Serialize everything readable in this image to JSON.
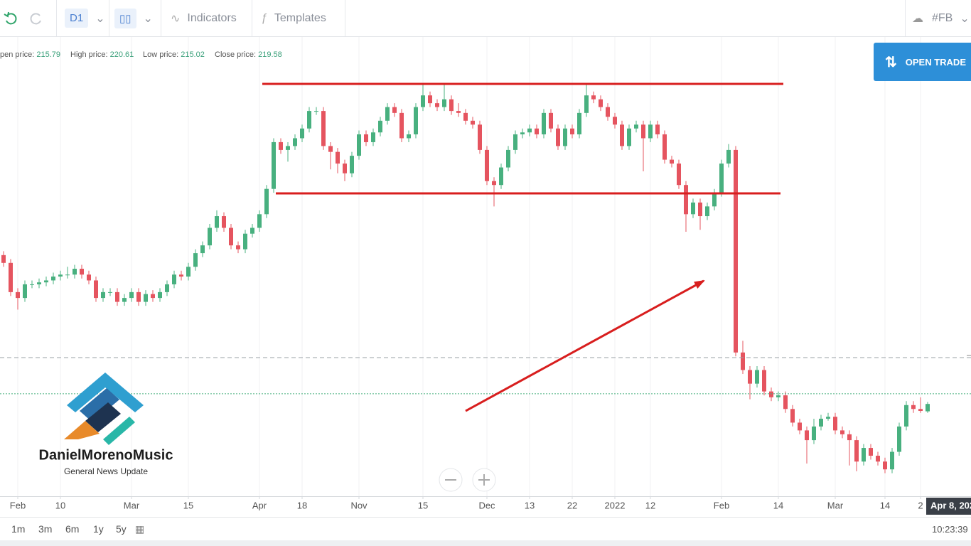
{
  "ui": {
    "timeframe": "D1",
    "indicators": "Indicators",
    "templates": "Templates",
    "symbol": "#FB",
    "open_trade": "OPEN TRADE",
    "ohlc_labels": [
      "pen price:",
      "High price:",
      "Low price:",
      "Close price:"
    ],
    "ranges": [
      "1m",
      "3m",
      "6m",
      "1y",
      "5y"
    ],
    "clock": "10:23:39",
    "crosshair_date": "Apr 8, 202",
    "logo_title": "DanielMorenoMusic",
    "logo_subtitle": "General News Update"
  },
  "chart_data": {
    "type": "candlestick",
    "up_color": "#48b07f",
    "down_color": "#e5545f",
    "grid": true,
    "xlim": [
      -0.5,
      136.1
    ],
    "ylim": [
      172.2,
      408.0
    ],
    "xticks": [
      {
        "value": 2,
        "label": "Feb"
      },
      {
        "value": 8,
        "label": "10"
      },
      {
        "value": 18,
        "label": "Mar"
      },
      {
        "value": 26,
        "label": "15"
      },
      {
        "value": 36,
        "label": "Apr"
      },
      {
        "value": 42,
        "label": "18"
      },
      {
        "value": 50,
        "label": "Nov"
      },
      {
        "value": 59,
        "label": "15"
      },
      {
        "value": 68,
        "label": "Dec"
      },
      {
        "value": 74,
        "label": "13"
      },
      {
        "value": 80,
        "label": "22"
      },
      {
        "value": 86,
        "label": "2022"
      },
      {
        "value": 91,
        "label": "12"
      },
      {
        "value": 101,
        "label": "Feb"
      },
      {
        "value": 109,
        "label": "14"
      },
      {
        "value": 117,
        "label": "Mar"
      },
      {
        "value": 124,
        "label": "14"
      },
      {
        "value": 129,
        "label": "2"
      }
    ],
    "ohlc": [
      [
        296,
        298,
        290,
        292
      ],
      [
        292,
        294,
        275,
        277
      ],
      [
        277,
        279,
        268,
        274
      ],
      [
        274,
        283,
        272,
        281
      ],
      [
        281,
        283,
        279,
        281
      ],
      [
        281,
        284,
        279,
        282
      ],
      [
        282,
        285,
        280,
        283
      ],
      [
        283,
        287,
        281,
        285
      ],
      [
        285,
        288,
        283,
        286
      ],
      [
        286,
        290,
        284,
        286
      ],
      [
        286,
        291,
        284,
        289
      ],
      [
        289,
        291,
        284,
        286
      ],
      [
        286,
        288,
        281,
        283
      ],
      [
        283,
        285,
        272,
        274
      ],
      [
        274,
        279,
        272,
        277
      ],
      [
        277,
        279,
        275,
        277
      ],
      [
        277,
        279,
        270,
        272
      ],
      [
        272,
        276,
        270,
        274
      ],
      [
        274,
        279,
        272,
        277
      ],
      [
        277,
        279,
        270,
        272
      ],
      [
        272,
        278,
        270,
        276
      ],
      [
        276,
        278,
        272,
        274
      ],
      [
        274,
        279,
        272,
        277
      ],
      [
        277,
        283,
        275,
        281
      ],
      [
        281,
        288,
        279,
        286
      ],
      [
        286,
        288,
        283,
        285
      ],
      [
        285,
        292,
        283,
        290
      ],
      [
        290,
        299,
        288,
        297
      ],
      [
        297,
        303,
        295,
        301
      ],
      [
        301,
        312,
        299,
        310
      ],
      [
        310,
        319,
        308,
        316
      ],
      [
        316,
        318,
        308,
        310
      ],
      [
        310,
        312,
        299,
        301
      ],
      [
        301,
        303,
        297,
        299
      ],
      [
        299,
        309,
        297,
        307
      ],
      [
        307,
        312,
        305,
        310
      ],
      [
        310,
        319,
        308,
        317
      ],
      [
        317,
        332,
        315,
        330
      ],
      [
        330,
        356,
        328,
        354
      ],
      [
        354,
        356,
        348,
        350
      ],
      [
        350,
        354,
        344,
        352
      ],
      [
        352,
        358,
        350,
        356
      ],
      [
        356,
        363,
        354,
        361
      ],
      [
        361,
        372,
        359,
        370
      ],
      [
        370,
        372,
        368,
        370
      ],
      [
        370,
        372,
        350,
        352
      ],
      [
        352,
        354,
        340,
        349
      ],
      [
        349,
        351,
        338,
        343
      ],
      [
        343,
        345,
        334,
        338
      ],
      [
        338,
        349,
        336,
        347
      ],
      [
        347,
        360,
        345,
        358
      ],
      [
        358,
        360,
        352,
        354
      ],
      [
        354,
        361,
        352,
        359
      ],
      [
        359,
        367,
        357,
        365
      ],
      [
        365,
        374,
        363,
        372
      ],
      [
        372,
        374,
        367,
        369
      ],
      [
        369,
        371,
        354,
        356
      ],
      [
        356,
        360,
        354,
        358
      ],
      [
        358,
        374,
        356,
        372
      ],
      [
        372,
        384,
        370,
        378
      ],
      [
        378,
        380,
        372,
        374
      ],
      [
        374,
        376,
        370,
        372
      ],
      [
        372,
        384,
        370,
        376
      ],
      [
        376,
        378,
        368,
        370
      ],
      [
        370,
        374,
        367,
        369
      ],
      [
        369,
        371,
        363,
        365
      ],
      [
        365,
        367,
        361,
        363
      ],
      [
        363,
        365,
        348,
        350
      ],
      [
        350,
        352,
        332,
        334
      ],
      [
        334,
        336,
        321,
        332
      ],
      [
        332,
        343,
        330,
        341
      ],
      [
        341,
        352,
        339,
        350
      ],
      [
        350,
        360,
        348,
        358
      ],
      [
        358,
        361,
        356,
        359
      ],
      [
        359,
        363,
        357,
        361
      ],
      [
        361,
        363,
        356,
        358
      ],
      [
        358,
        371,
        356,
        369
      ],
      [
        369,
        371,
        359,
        361
      ],
      [
        361,
        363,
        350,
        352
      ],
      [
        352,
        363,
        350,
        361
      ],
      [
        361,
        363,
        356,
        358
      ],
      [
        358,
        371,
        356,
        369
      ],
      [
        369,
        384,
        367,
        378
      ],
      [
        378,
        380,
        374,
        376
      ],
      [
        376,
        378,
        370,
        372
      ],
      [
        372,
        374,
        365,
        367
      ],
      [
        367,
        369,
        361,
        363
      ],
      [
        363,
        365,
        350,
        352
      ],
      [
        352,
        363,
        350,
        361
      ],
      [
        361,
        365,
        359,
        363
      ],
      [
        363,
        365,
        339,
        356
      ],
      [
        356,
        365,
        354,
        363
      ],
      [
        363,
        365,
        356,
        358
      ],
      [
        358,
        360,
        343,
        345
      ],
      [
        345,
        347,
        341,
        343
      ],
      [
        343,
        345,
        330,
        332
      ],
      [
        332,
        334,
        308,
        317
      ],
      [
        317,
        325,
        315,
        323
      ],
      [
        323,
        325,
        309,
        316
      ],
      [
        316,
        323,
        314,
        321
      ],
      [
        321,
        330,
        319,
        328
      ],
      [
        328,
        345,
        326,
        343
      ],
      [
        343,
        353,
        341,
        350
      ],
      [
        350,
        352,
        244,
        246
      ],
      [
        246,
        252,
        235,
        237
      ],
      [
        237,
        239,
        222,
        230
      ],
      [
        230,
        239,
        228,
        237
      ],
      [
        237,
        239,
        224,
        226
      ],
      [
        226,
        228,
        221,
        223
      ],
      [
        223,
        226,
        221,
        224
      ],
      [
        224,
        226,
        215,
        217
      ],
      [
        217,
        219,
        208,
        210
      ],
      [
        210,
        212,
        204,
        206
      ],
      [
        206,
        208,
        189,
        201
      ],
      [
        201,
        212,
        199,
        208
      ],
      [
        208,
        214,
        206,
        212
      ],
      [
        212,
        215,
        211,
        213
      ],
      [
        213,
        215,
        204,
        206
      ],
      [
        206,
        208,
        202,
        204
      ],
      [
        204,
        206,
        188,
        201
      ],
      [
        201,
        203,
        185,
        190
      ],
      [
        190,
        199,
        188,
        197
      ],
      [
        197,
        199,
        191,
        193
      ],
      [
        193,
        195,
        188,
        190
      ],
      [
        190,
        192,
        184,
        186
      ],
      [
        186,
        197,
        184,
        195
      ],
      [
        195,
        210,
        193,
        208
      ],
      [
        208,
        221,
        206,
        219
      ],
      [
        219,
        221,
        215,
        217
      ],
      [
        217,
        223,
        215,
        216
      ],
      [
        215.79,
        220.61,
        215.02,
        219.58
      ]
    ],
    "levels": [
      {
        "value": 383.9,
        "from": 36.4,
        "to": 109.7,
        "color": "#d81e1e",
        "style": "solid"
      },
      {
        "value": 327.7,
        "from": 38.3,
        "to": 109.3,
        "color": "#d81e1e",
        "style": "solid"
      },
      {
        "value": 243.4,
        "from": -0.5,
        "to": 136.1,
        "color": "#9aa0a6",
        "style": "dashed"
      },
      {
        "value": 224.8,
        "from": -0.5,
        "to": 136.1,
        "color": "#48b07f",
        "style": "dotted"
      }
    ],
    "arrow": {
      "x": [
        65,
        98.5
      ],
      "y": [
        216,
        282.8
      ],
      "color": "#d81e1e"
    }
  }
}
